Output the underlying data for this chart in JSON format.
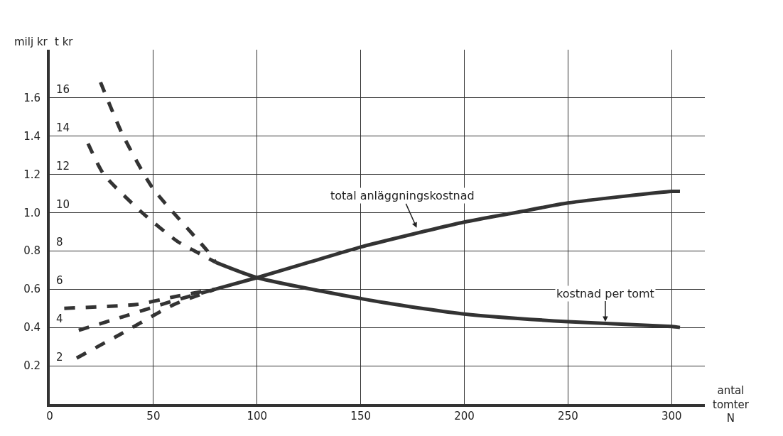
{
  "chart_data": {
    "type": "line",
    "xlabel": "antal tomter N",
    "ylabel": "milj kr",
    "y2label": "t kr",
    "xlim": [
      0,
      316
    ],
    "xticks": [
      0,
      50,
      100,
      150,
      200,
      250,
      300
    ],
    "ylim": [
      0,
      1.85
    ],
    "yticks": [
      0.2,
      0.4,
      0.6,
      0.8,
      {
        "value": 1.0,
        "label": "1.0"
      },
      1.2,
      1.4,
      1.6
    ],
    "y2lim": [
      0,
      18.5
    ],
    "y2ticks": [
      2,
      4,
      6,
      8,
      10,
      12,
      14,
      16
    ],
    "grid": true,
    "marker": "none",
    "series": [
      {
        "color": "#333333",
        "line_style": "solid",
        "x": [
          80,
          100,
          125,
          150,
          161,
          200,
          225,
          250,
          300,
          304
        ],
        "values": [
          0.6,
          0.66,
          0.74,
          0.82,
          0.85,
          0.95,
          1.0,
          1.05,
          1.11,
          1.11
        ]
      },
      {
        "color": "#333333",
        "line_style": "solid",
        "axis": "y2",
        "x": [
          80,
          100,
          161,
          200,
          250,
          300,
          304
        ],
        "values": [
          7.4,
          6.6,
          5.3,
          4.7,
          4.3,
          4.05,
          4.0
        ]
      },
      {
        "color": "#333333",
        "line_style": "dashed",
        "x": [
          7,
          42,
          60,
          80
        ],
        "values": [
          0.5,
          0.52,
          0.56,
          0.6
        ]
      },
      {
        "color": "#333333",
        "line_style": "dashed",
        "x": [
          14,
          35,
          60,
          80
        ],
        "values": [
          0.385,
          0.455,
          0.54,
          0.6
        ]
      },
      {
        "color": "#333333",
        "line_style": "dashed",
        "x": [
          13,
          35,
          60,
          80
        ],
        "values": [
          0.24,
          0.37,
          0.52,
          0.6
        ]
      },
      {
        "color": "#333333",
        "line_style": "dashed",
        "axis": "y2",
        "x": [
          24.5,
          35,
          49.5,
          76,
          80
        ],
        "values": [
          16.8,
          14.1,
          11.3,
          8.0,
          7.4
        ]
      },
      {
        "color": "#333333",
        "line_style": "dashed",
        "axis": "y2",
        "x": [
          18.5,
          26,
          44.5,
          61.5,
          75,
          80
        ],
        "values": [
          13.6,
          12.0,
          10.0,
          8.5,
          7.7,
          7.4
        ]
      }
    ],
    "annotations": [
      {
        "text": "total anläggningskostnad",
        "x": 177,
        "y": 0.92
      },
      {
        "text": "kostnad per tomt",
        "x": 268,
        "y": 0.43
      }
    ]
  }
}
